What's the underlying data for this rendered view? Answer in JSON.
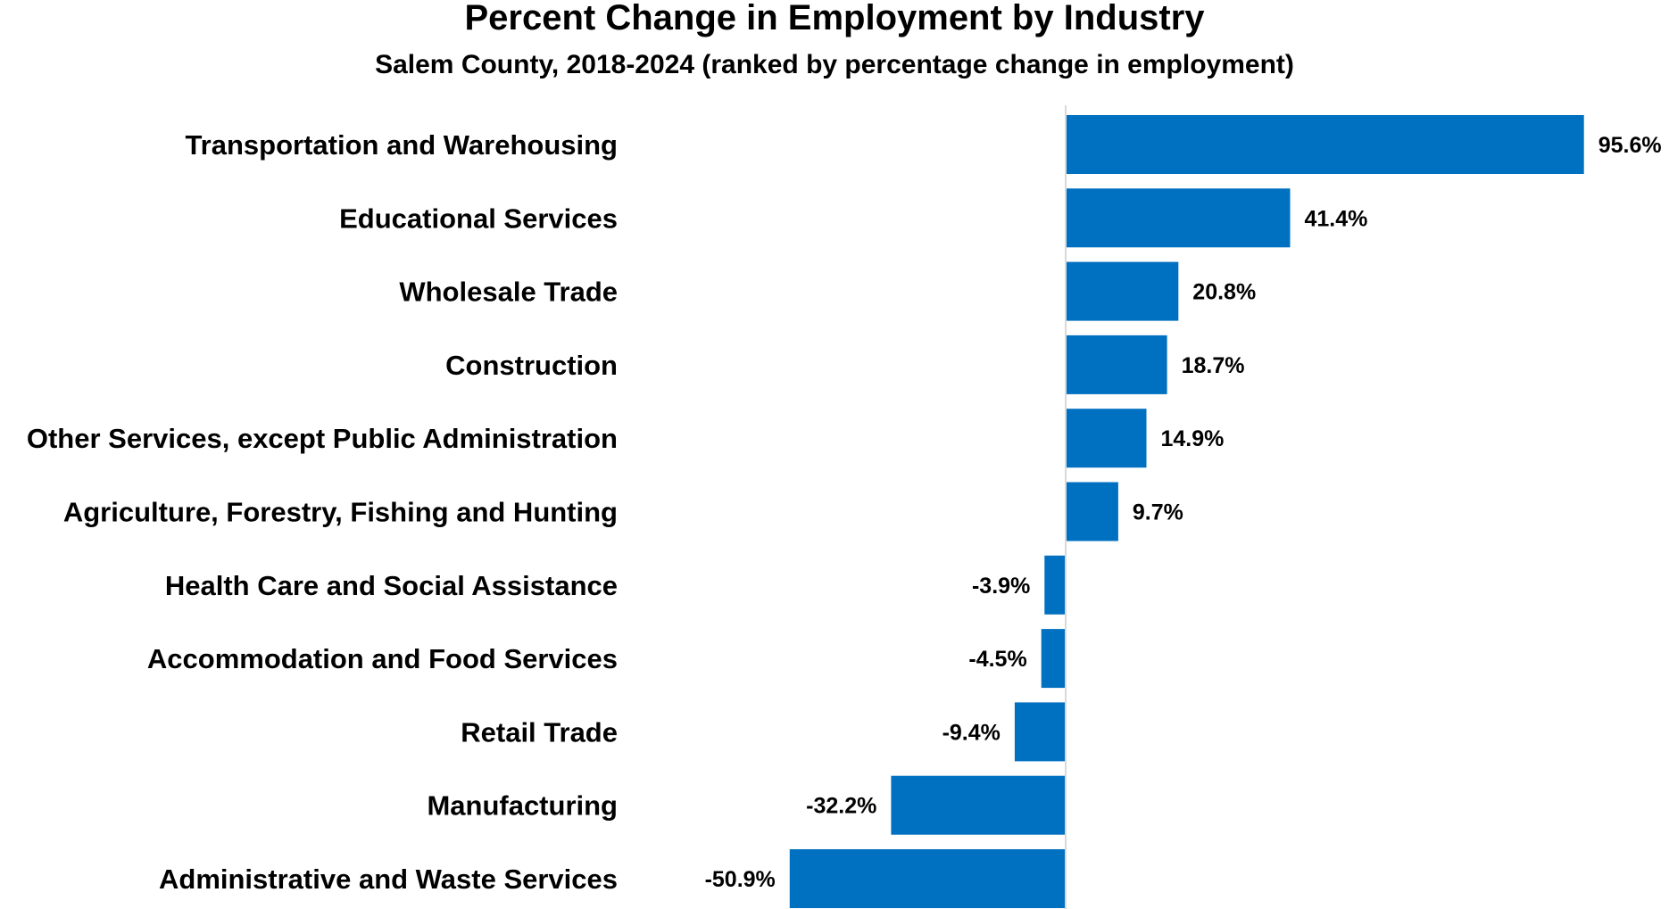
{
  "chart_data": {
    "type": "bar",
    "orientation": "horizontal",
    "title": "Percent Change in Employment by Industry",
    "subtitle": "Salem County, 2018-2024 (ranked by percentage change in employment)",
    "categories": [
      "Transportation and Warehousing",
      "Educational Services",
      "Wholesale Trade",
      "Construction",
      "Other Services, except Public Administration",
      "Agriculture, Forestry, Fishing and Hunting",
      "Health Care and Social Assistance",
      "Accommodation and Food Services",
      "Retail Trade",
      "Manufacturing",
      "Administrative and Waste Services"
    ],
    "values": [
      95.6,
      41.4,
      20.8,
      18.7,
      14.9,
      9.7,
      -3.9,
      -4.5,
      -9.4,
      -32.2,
      -50.9
    ],
    "data_labels": [
      "95.6%",
      "41.4%",
      "20.8%",
      "18.7%",
      "14.9%",
      "9.7%",
      "-3.9%",
      "-4.5%",
      "-9.4%",
      "-32.2%",
      "-50.9%"
    ],
    "xlim": [
      -50.9,
      95.6
    ],
    "grid": false,
    "legend": "none",
    "bar_color": "#0070C0",
    "axis_line_color": "#D9D9D9"
  }
}
